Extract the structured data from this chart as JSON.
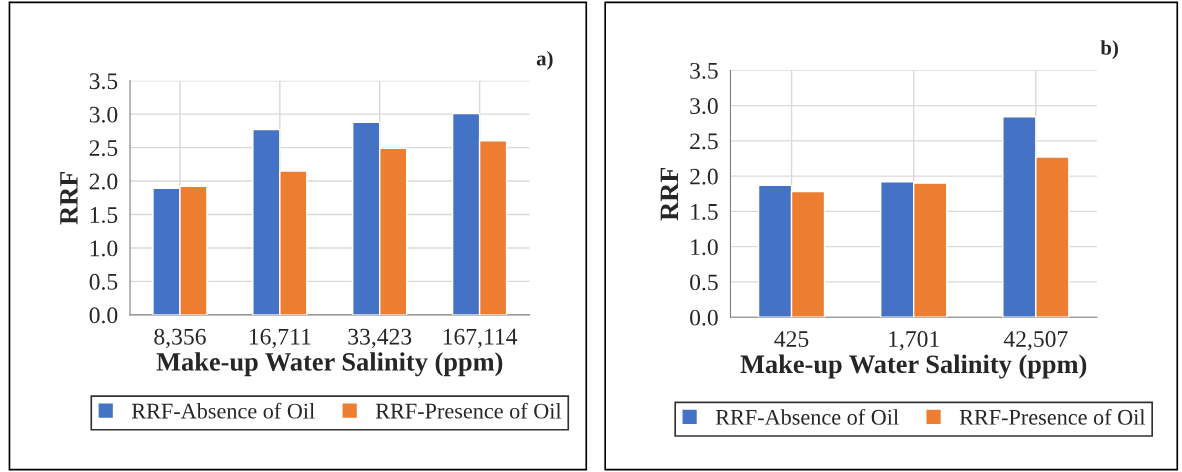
{
  "chart_data": [
    {
      "type": "bar",
      "title": "a)",
      "xlabel": "Make-up Water Salinity (ppm)",
      "ylabel": "RRF",
      "categories": [
        "8,356",
        "16,711",
        "33,423",
        "167,114"
      ],
      "series": [
        {
          "name": "RRF-Absence of Oil",
          "color": "#4472c4",
          "values": [
            1.89,
            2.77,
            2.88,
            3.01
          ]
        },
        {
          "name": "RRF-Presence of Oil",
          "color": "#ed7d31",
          "values": [
            1.92,
            2.15,
            2.49,
            2.6
          ]
        }
      ],
      "ylim": [
        0,
        3.5
      ],
      "yticks": [
        {
          "value": 0,
          "label": "0.0"
        },
        0.5,
        {
          "value": 1,
          "label": "1.0"
        },
        1.5,
        {
          "value": 2,
          "label": "2.0"
        },
        2.5,
        {
          "value": 3,
          "label": "3.0"
        },
        3.5
      ],
      "grid": true,
      "legend": "bottom"
    },
    {
      "type": "bar",
      "title": "b)",
      "xlabel": "Make-up Water Salinity (ppm)",
      "ylabel": "RRF",
      "categories": [
        "425",
        "1,701",
        "42,507"
      ],
      "series": [
        {
          "name": "RRF-Absence of Oil",
          "color": "#4472c4",
          "values": [
            1.87,
            1.92,
            2.84
          ]
        },
        {
          "name": "RRF-Presence of Oil",
          "color": "#ed7d31",
          "values": [
            1.78,
            1.9,
            2.27
          ]
        }
      ],
      "ylim": [
        0,
        3.5
      ],
      "yticks": [
        {
          "value": 0,
          "label": "0.0"
        },
        0.5,
        {
          "value": 1,
          "label": "1.0"
        },
        1.5,
        {
          "value": 2,
          "label": "2.0"
        },
        2.5,
        {
          "value": 3,
          "label": "3.0"
        },
        3.5
      ],
      "grid": true,
      "legend": "bottom"
    }
  ]
}
